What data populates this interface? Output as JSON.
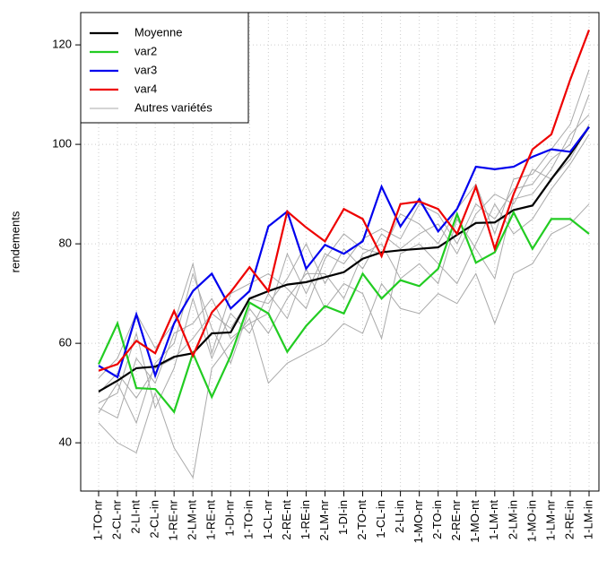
{
  "chart_data": {
    "type": "line",
    "y_label": "rendements",
    "categories": [
      "1-TO-nr",
      "2-CL-nr",
      "2-LI-nt",
      "2-CL-in",
      "1-RE-nr",
      "2-LM-nt",
      "1-RE-nt",
      "1-DI-nr",
      "1-TO-in",
      "1-CL-nr",
      "2-RE-nt",
      "1-RE-in",
      "2-LM-nr",
      "1-DI-in",
      "2-TO-nt",
      "1-CL-in",
      "2-LI-in",
      "1-MO-nr",
      "2-TO-in",
      "2-RE-nr",
      "1-MO-nt",
      "1-LM-nt",
      "2-LM-in",
      "1-MO-in",
      "1-LM-nr",
      "2-RE-in",
      "1-LM-in"
    ],
    "ylim": [
      30.3,
      126.5
    ],
    "yticks": [
      40,
      60,
      80,
      100,
      120
    ],
    "grid": true,
    "series": [
      {
        "name": "Moyenne",
        "color": "#000000",
        "values": [
          50.3,
          52.5,
          55,
          55.3,
          57.3,
          58,
          62,
          62.2,
          69,
          70.5,
          71.8,
          72.3,
          73.3,
          74.3,
          77,
          78.3,
          78.7,
          79,
          79.3,
          81.8,
          84.2,
          84.3,
          86.8,
          87.7,
          93,
          98,
          103.5
        ]
      },
      {
        "name": "var2",
        "color": "#22cc22",
        "values": [
          55.8,
          64,
          51,
          50.8,
          46.2,
          58,
          49.2,
          57.5,
          68.2,
          66,
          58.3,
          63.5,
          67.5,
          66,
          74,
          69,
          72.7,
          71.5,
          75,
          86,
          76.2,
          78.3,
          86.3,
          79,
          85,
          85,
          82
        ]
      },
      {
        "name": "var3",
        "color": "#0000ee",
        "values": [
          55.5,
          53.2,
          65.8,
          53.5,
          64,
          70.5,
          74,
          67,
          70.5,
          83.5,
          86.5,
          75,
          79.8,
          78,
          80.5,
          91.5,
          83.5,
          89,
          82.5,
          87,
          95.5,
          95,
          95.5,
          97.5,
          99,
          98.5,
          103.5
        ]
      },
      {
        "name": "var4",
        "color": "#ee0000",
        "values": [
          54.5,
          55.8,
          60.5,
          58,
          66.5,
          57.5,
          66.2,
          70.3,
          75.3,
          70.5,
          86.5,
          83.3,
          80.5,
          87,
          85,
          77.5,
          88,
          88.5,
          87,
          82,
          91.5,
          79,
          90,
          99,
          102,
          113,
          123
        ]
      }
    ],
    "others": {
      "name": "Autres variétés",
      "color": "#aaaaaa",
      "lines": [
        [
          44,
          40,
          38,
          50,
          39,
          33,
          55,
          60,
          65,
          52,
          56,
          58,
          60,
          64,
          62,
          72,
          67,
          66,
          70,
          68,
          74,
          64,
          74,
          76,
          82,
          84,
          88
        ],
        [
          48,
          50,
          62,
          47,
          55,
          69,
          57,
          66,
          62,
          70,
          65,
          75,
          67,
          72,
          70,
          61,
          78,
          80,
          76,
          72,
          80,
          88,
          82,
          85,
          91,
          96,
          102
        ],
        [
          46,
          52,
          44,
          56,
          60,
          74,
          63,
          56,
          67,
          62,
          69,
          74,
          74,
          69,
          78,
          80,
          73,
          76,
          72,
          85,
          79,
          73,
          89,
          90,
          95,
          102,
          106
        ],
        [
          53,
          57,
          66,
          59,
          64,
          76,
          58,
          70,
          72,
          74,
          71,
          67,
          77,
          82,
          79,
          78,
          86,
          84,
          80,
          87,
          92,
          82,
          93,
          94,
          99,
          104,
          115
        ],
        [
          47,
          45,
          57,
          52,
          62,
          64,
          69,
          61,
          64,
          66,
          78,
          70,
          78,
          76,
          81,
          83,
          81,
          88,
          86,
          80,
          88,
          85,
          91,
          92,
          97,
          100,
          110
        ],
        [
          50,
          54,
          49,
          55,
          57,
          61,
          66,
          63,
          69,
          68,
          73,
          80,
          72,
          79,
          75,
          82,
          79,
          82,
          84,
          78,
          86,
          90,
          88,
          95,
          93,
          97,
          104
        ]
      ]
    }
  }
}
